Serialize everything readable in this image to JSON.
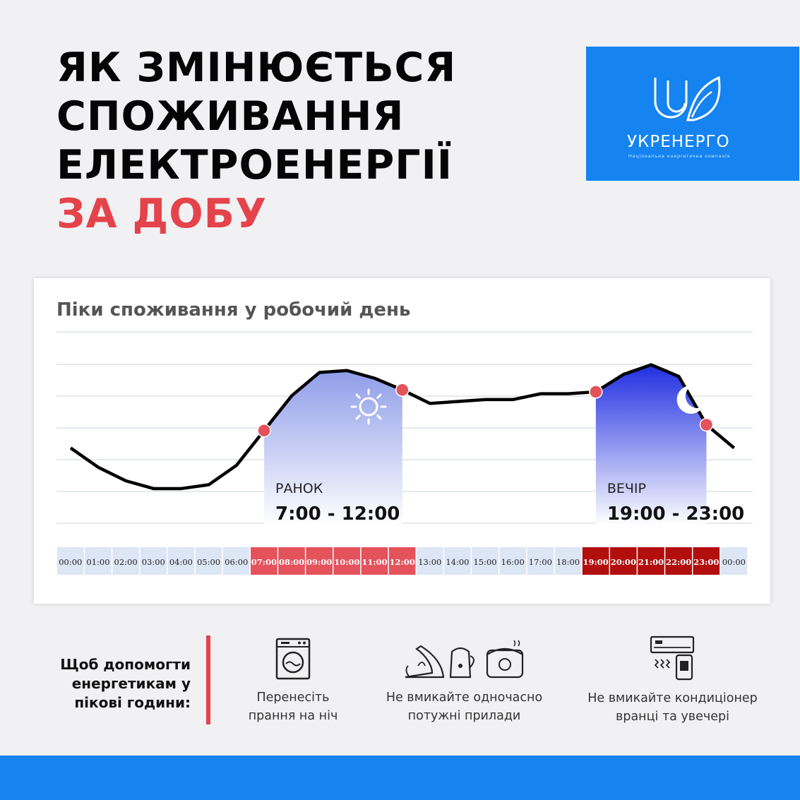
{
  "headline": {
    "line1": "ЯК ЗМІНЮЄТЬСЯ",
    "line2": "СПОЖИВАННЯ",
    "line3": "ЕЛЕКТРОЕНЕРГІЇ",
    "line4": "ЗА ДОБУ"
  },
  "logo": {
    "name": "УКРЕНЕРГО",
    "subtitle": "Національна енергетична компанія"
  },
  "colors": {
    "accent_red": "#e4434b",
    "brand_blue": "#1583f0",
    "peak_morning": "#e4525b",
    "peak_evening": "#b20e0e",
    "hour_cell": "#dde6f4"
  },
  "chart_data": {
    "type": "line",
    "title": "Піки споживання  у робочий день",
    "xlabel": "",
    "ylabel": "",
    "grid": true,
    "x": [
      0,
      1,
      2,
      3,
      4,
      5,
      6,
      7,
      8,
      9,
      10,
      11,
      12,
      13,
      14,
      15,
      16,
      17,
      18,
      19,
      20,
      21,
      22,
      23,
      24
    ],
    "series": [
      {
        "values": [
          0.4,
          0.3,
          0.23,
          0.19,
          0.19,
          0.21,
          0.31,
          0.49,
          0.67,
          0.79,
          0.8,
          0.76,
          0.7,
          0.63,
          0.64,
          0.65,
          0.65,
          0.68,
          0.68,
          0.69,
          0.78,
          0.83,
          0.77,
          0.52,
          0.4
        ]
      }
    ],
    "hour_labels": [
      "00:00",
      "01:00",
      "02:00",
      "03:00",
      "04:00",
      "05:00",
      "06:00",
      "07:00",
      "08:00",
      "09:00",
      "10:00",
      "11:00",
      "12:00",
      "13:00",
      "14:00",
      "15:00",
      "16:00",
      "17:00",
      "18:00",
      "19:00",
      "20:00",
      "21:00",
      "22:00",
      "23:00",
      "00:00"
    ],
    "peaks": [
      {
        "label": "РАНОК",
        "range": "7:00 - 12:00",
        "start": 7,
        "end": 12,
        "icon": "sun-icon"
      },
      {
        "label": "ВЕЧІР",
        "range": "19:00 - 23:00",
        "start": 19,
        "end": 23,
        "icon": "moon-icon"
      }
    ]
  },
  "tips": {
    "intro": "Щоб допомогти енергетикам у пікові години:",
    "items": [
      {
        "icon": "washing-machine-icon",
        "text": "Перенесіть прання на ніч"
      },
      {
        "icon": "appliances-icon",
        "text": "Не вмикайте одночасно потужні прилади"
      },
      {
        "icon": "air-conditioner-icon",
        "text": "Не вмикайте кондиціонер вранці та увечері"
      }
    ]
  }
}
